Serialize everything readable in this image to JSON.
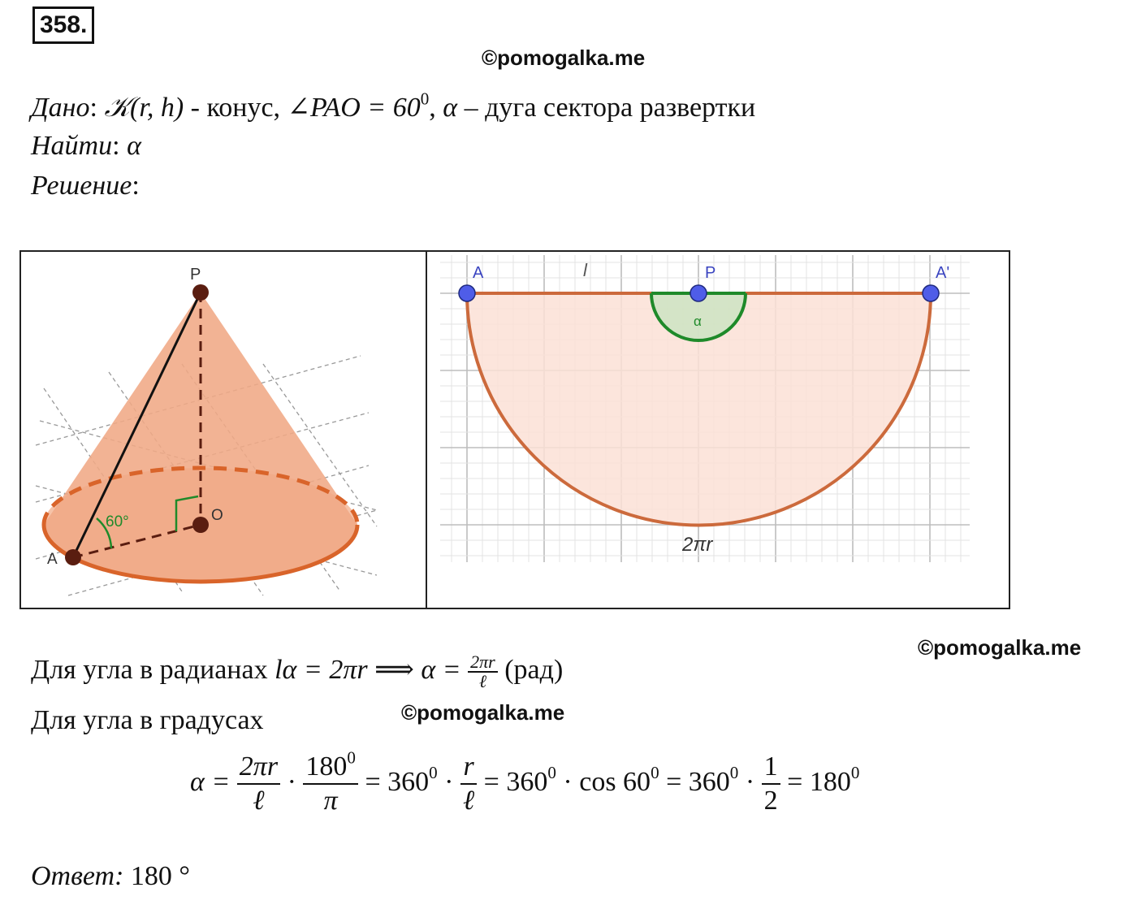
{
  "problem_number": "358.",
  "watermarks": [
    "©pomogalka.me",
    "©pomogalka.me",
    "©pomogalka.me"
  ],
  "given": {
    "label": "Дано",
    "cone": "𝒦(r, h)",
    "text1": " - конус, ",
    "angle": "∠PAO = 60",
    "sup": "0",
    "alpha": "α",
    "text2": " – дуга сектора развертки"
  },
  "find": {
    "label": "Найти",
    "value": "α"
  },
  "solution": {
    "label": "Решение"
  },
  "figure_left": {
    "labels": {
      "apex": "P",
      "center": "O",
      "point": "A",
      "angle": "60°"
    }
  },
  "figure_right": {
    "labels": {
      "left": "A",
      "top": "l",
      "center": "P",
      "right": "A'",
      "angle": "α",
      "arc": "2πr"
    }
  },
  "radians_line": {
    "text": "Для угла в радианах ",
    "eq": "lα = 2πr ⟹ α = ",
    "num": "2πr",
    "den": "ℓ",
    "unit": " (рад)"
  },
  "degrees_line": {
    "text": "Для угла в градусах"
  },
  "formula": {
    "lhs": "α = ",
    "f1_num": "2πr",
    "f1_den": "ℓ",
    "dot": " · ",
    "f2_num": "180",
    "f2_num_sup": "0",
    "f2_den": "π",
    "eq1": " = 360",
    "f3_num": "r",
    "f3_den": "ℓ",
    "eq2": " = 360",
    "cos": " · cos 60",
    "eq3": " = 360",
    "f4_num": "1",
    "f4_den": "2",
    "eq4": " = 180",
    "sup0": "0"
  },
  "answer": {
    "label": "Ответ:",
    "value": " 180 °"
  },
  "colors": {
    "cone_fill": "#f0a985",
    "cone_edge": "#d9642a",
    "sector_fill": "#fbe1d6",
    "sector_edge": "#cc6a3c",
    "angle_arc": "#1f8a2a",
    "point_blue": "#4f5de8",
    "grid": "#d4d4d4"
  }
}
